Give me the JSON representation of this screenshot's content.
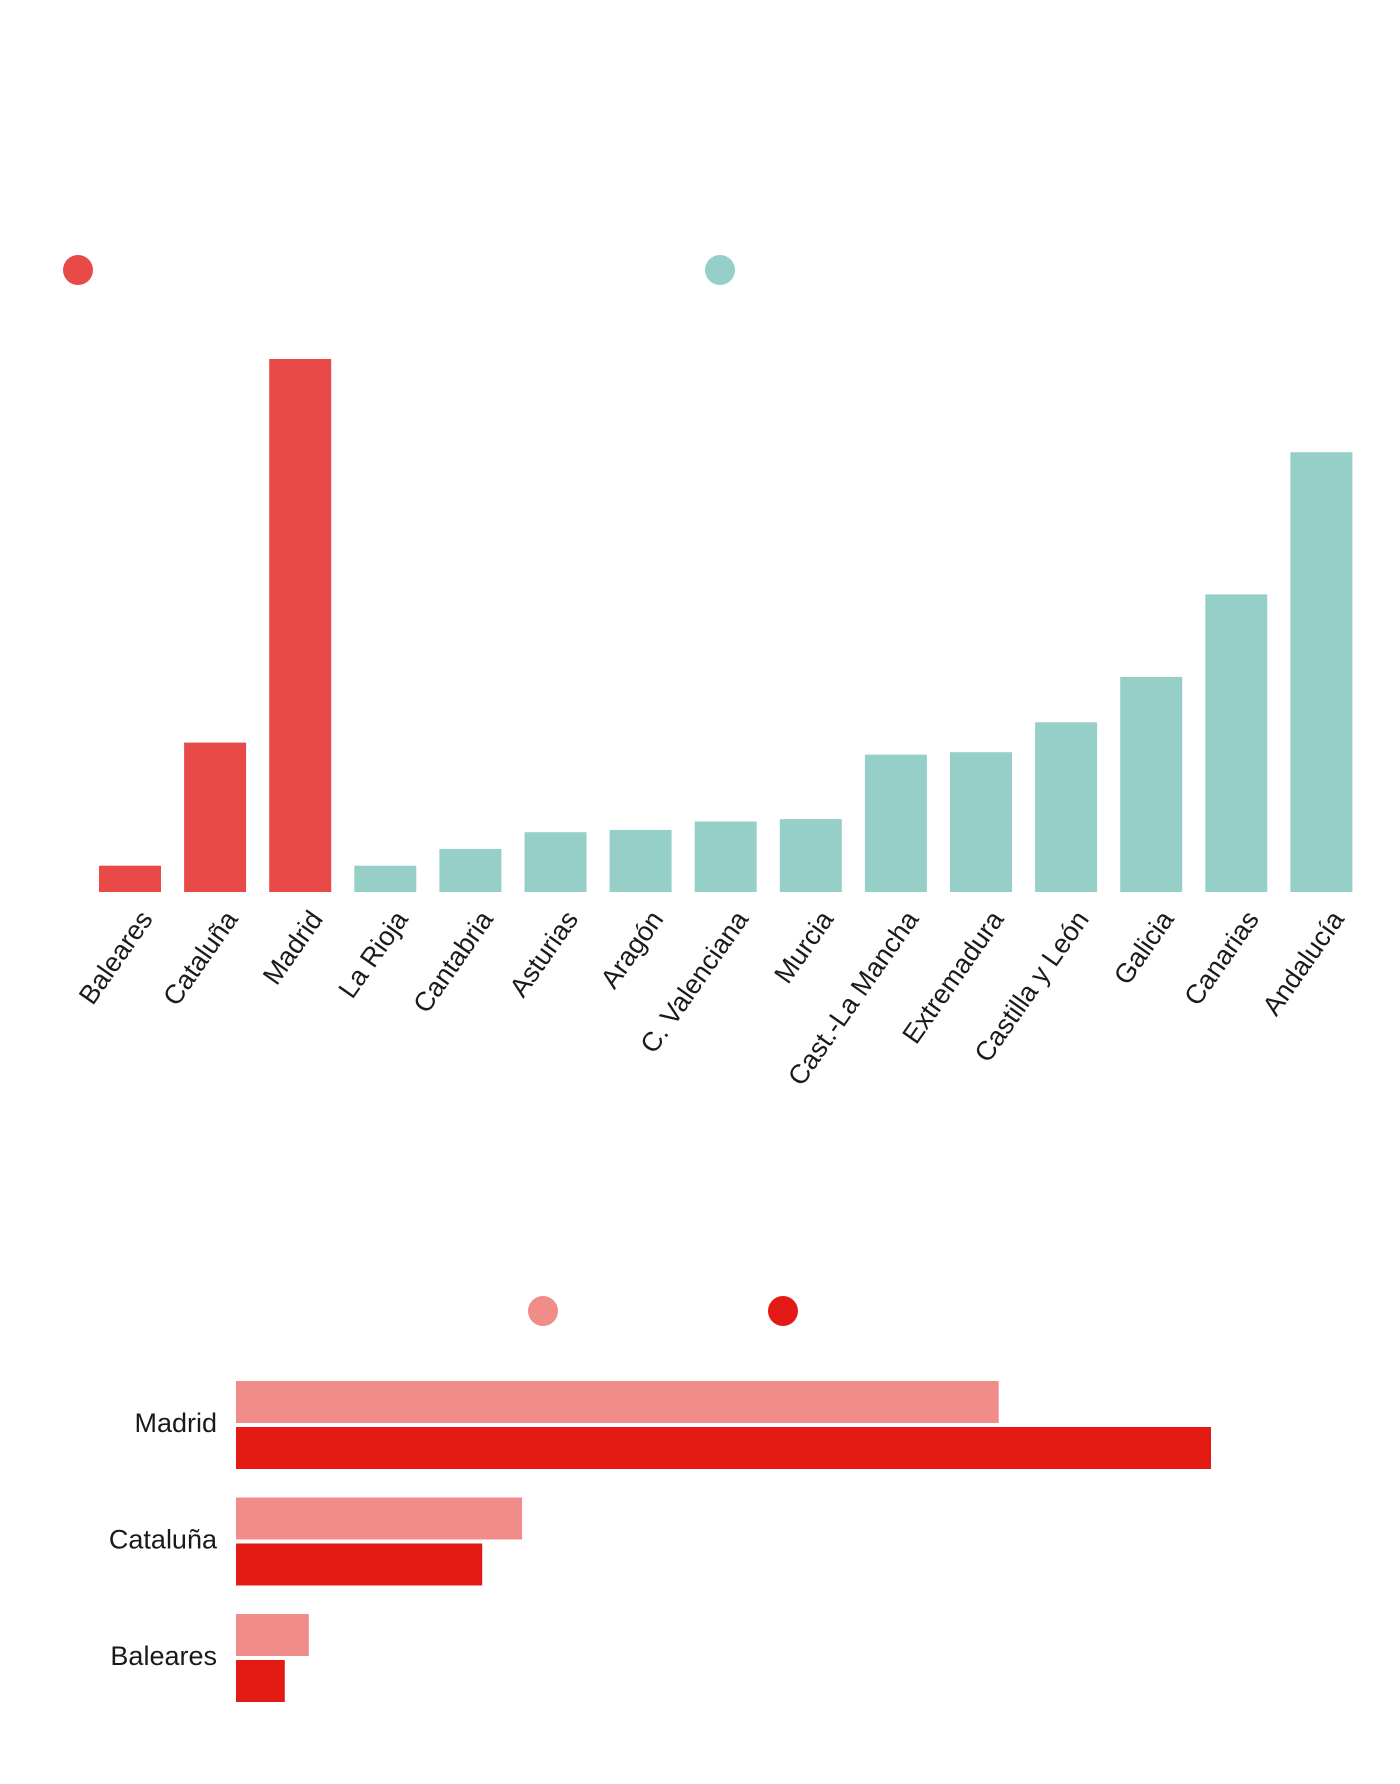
{
  "colors": {
    "highlight": "#e84a47",
    "rest": "#95cfc7",
    "series_a": "#f08c8a",
    "series_b": "#e31b14"
  },
  "chart_data": [
    {
      "type": "bar",
      "title": "",
      "xlabel": "",
      "ylabel": "",
      "legend": [
        {
          "name": "",
          "color": "#e84a47"
        },
        {
          "name": "",
          "color": "#95cfc7"
        }
      ],
      "categories": [
        "Baleares",
        "Cataluña",
        "Madrid",
        "La Rioja",
        "Cantabria",
        "Asturias",
        "Aragón",
        "C. Valenciana",
        "Murcia",
        "Cast.-La Mancha",
        "Extremadura",
        "Castilla y León",
        "Galicia",
        "Canarias",
        "Andalucía"
      ],
      "values": [
        22,
        125,
        446,
        22,
        36,
        50,
        52,
        59,
        61,
        115,
        117,
        142,
        180,
        249,
        368
      ],
      "highlight": [
        true,
        true,
        true,
        false,
        false,
        false,
        false,
        false,
        false,
        false,
        false,
        false,
        false,
        false,
        false
      ],
      "ylim": [
        0,
        446
      ],
      "grid": false
    },
    {
      "type": "bar",
      "orientation": "horizontal",
      "title": "",
      "legend": [
        {
          "name": "",
          "color": "#f08c8a"
        },
        {
          "name": "",
          "color": "#e31b14"
        }
      ],
      "categories": [
        "Madrid",
        "Cataluña",
        "Baleares"
      ],
      "series": [
        {
          "name": "",
          "values": [
            765,
            287,
            73
          ]
        },
        {
          "name": "",
          "values": [
            978,
            247,
            49
          ]
        }
      ],
      "xlim": [
        0,
        978
      ],
      "grid": false
    }
  ]
}
